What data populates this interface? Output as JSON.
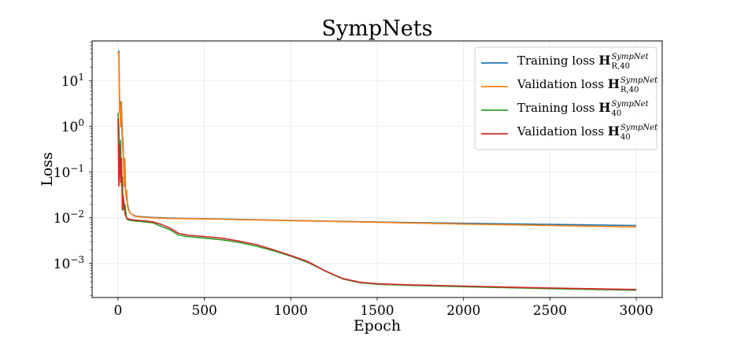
{
  "chart_data": {
    "type": "line",
    "title": "SympNets",
    "xlabel": "Epoch",
    "ylabel": "Loss",
    "xlim": [
      -150,
      3150
    ],
    "ylim": [
      0.00018,
      75
    ],
    "yscale": "log",
    "grid": true,
    "legend_position": "top-right",
    "xticks": [
      0,
      500,
      1000,
      1500,
      2000,
      2500,
      3000
    ],
    "yticks": [
      {
        "value": 0.001,
        "base": "10",
        "exp": "−3"
      },
      {
        "value": 0.01,
        "base": "10",
        "exp": "−2"
      },
      {
        "value": 0.1,
        "base": "10",
        "exp": "−1"
      },
      {
        "value": 1,
        "base": "10",
        "exp": "0"
      },
      {
        "value": 10,
        "base": "10",
        "exp": "1"
      }
    ],
    "series": [
      {
        "name": "Training loss H_{R,40}^{SympNet}",
        "legend": {
          "prefix": "Training loss ",
          "sym": "H",
          "sup": "SympNet",
          "sub": "R,40"
        },
        "color": "#1f77b4",
        "x": [
          0,
          5,
          10,
          15,
          20,
          25,
          30,
          35,
          40,
          45,
          50,
          55,
          60,
          70,
          80,
          100,
          150,
          200,
          300,
          400,
          500,
          600,
          800,
          1000,
          1200,
          1500,
          2000,
          2500,
          3000
        ],
        "y": [
          40,
          45,
          2.0,
          3.5,
          1.2,
          0.6,
          0.25,
          0.1,
          0.05,
          0.04,
          0.025,
          0.02,
          0.016,
          0.013,
          0.012,
          0.011,
          0.0105,
          0.0102,
          0.0099,
          0.0097,
          0.0096,
          0.0094,
          0.0091,
          0.0088,
          0.0085,
          0.0081,
          0.0076,
          0.0072,
          0.0068
        ]
      },
      {
        "name": "Validation loss H_{R,40}^{SympNet}",
        "legend": {
          "prefix": "Validation loss ",
          "sym": "H",
          "sup": "SympNet",
          "sub": "R,40"
        },
        "color": "#ff7f0e",
        "x": [
          0,
          5,
          10,
          15,
          20,
          25,
          30,
          35,
          40,
          45,
          50,
          55,
          60,
          70,
          80,
          100,
          150,
          200,
          300,
          400,
          500,
          600,
          800,
          1000,
          1200,
          1500,
          2000,
          2500,
          3000
        ],
        "y": [
          38,
          42,
          3.0,
          1.0,
          3.5,
          0.8,
          0.4,
          0.05,
          0.2,
          0.03,
          0.04,
          0.018,
          0.015,
          0.013,
          0.012,
          0.0108,
          0.0103,
          0.01,
          0.0097,
          0.0096,
          0.0095,
          0.0093,
          0.009,
          0.0087,
          0.0084,
          0.008,
          0.0073,
          0.0068,
          0.0063
        ]
      },
      {
        "name": "Training loss H_{40}^{SympNet}",
        "legend": {
          "prefix": "Training loss ",
          "sym": "H",
          "sup": "SympNet",
          "sub": "40"
        },
        "color": "#2ca02c",
        "x": [
          0,
          5,
          10,
          15,
          20,
          25,
          30,
          40,
          50,
          60,
          70,
          80,
          100,
          150,
          200,
          250,
          300,
          350,
          400,
          500,
          600,
          700,
          800,
          900,
          1000,
          1100,
          1200,
          1300,
          1400,
          1500,
          1700,
          2000,
          2500,
          3000
        ],
        "y": [
          2.0,
          0.9,
          0.12,
          0.5,
          0.05,
          0.08,
          0.015,
          0.02,
          0.0095,
          0.009,
          0.0088,
          0.0087,
          0.0085,
          0.0082,
          0.0078,
          0.0065,
          0.0055,
          0.0042,
          0.0039,
          0.0036,
          0.0033,
          0.0029,
          0.0024,
          0.0019,
          0.00145,
          0.00105,
          0.00068,
          0.00046,
          0.00038,
          0.00035,
          0.00033,
          0.00031,
          0.00028,
          0.00026
        ]
      },
      {
        "name": "Validation loss H_{40}^{SympNet}",
        "legend": {
          "prefix": "Validation loss ",
          "sym": "H",
          "sup": "SympNet",
          "sub": "40"
        },
        "color": "#d62728",
        "x": [
          0,
          5,
          10,
          15,
          20,
          25,
          30,
          40,
          50,
          60,
          70,
          80,
          100,
          150,
          200,
          250,
          300,
          350,
          400,
          500,
          600,
          700,
          800,
          900,
          1000,
          1100,
          1200,
          1300,
          1400,
          1500,
          1700,
          2000,
          2500,
          3000
        ],
        "y": [
          1.5,
          0.05,
          0.4,
          0.06,
          0.2,
          0.015,
          0.03,
          0.012,
          0.01,
          0.0095,
          0.0093,
          0.0091,
          0.0089,
          0.0086,
          0.0082,
          0.0072,
          0.006,
          0.0046,
          0.0042,
          0.0039,
          0.0036,
          0.0031,
          0.0026,
          0.002,
          0.0015,
          0.0011,
          0.00069,
          0.00047,
          0.00039,
          0.00036,
          0.00034,
          0.00032,
          0.00029,
          0.00027
        ]
      }
    ]
  }
}
